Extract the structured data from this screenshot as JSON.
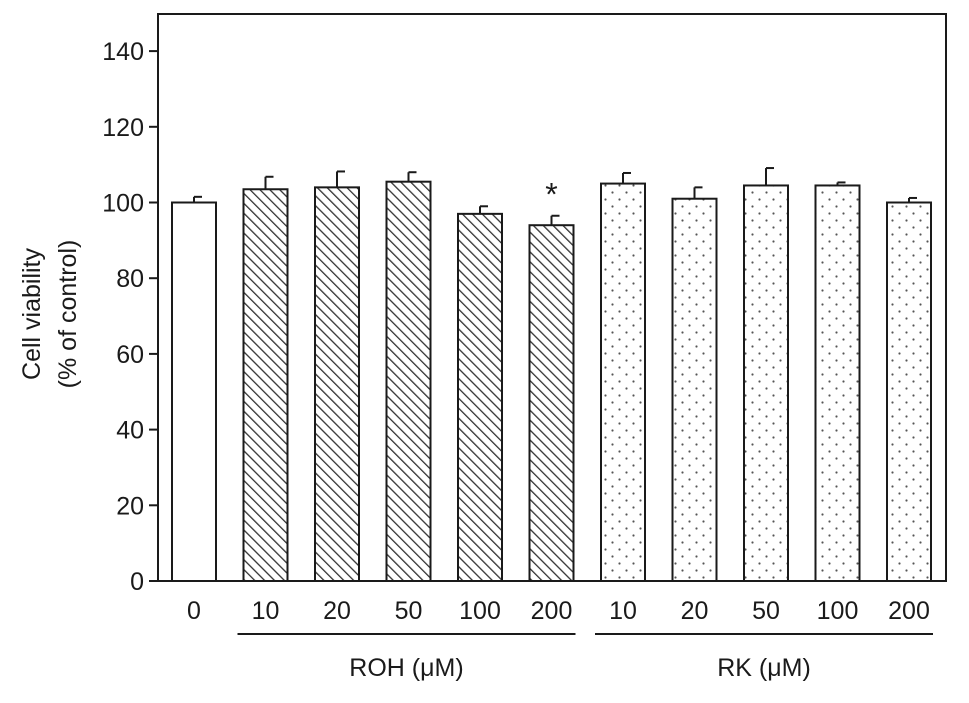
{
  "chart_data": {
    "type": "bar",
    "title": "",
    "ylabel_lines": [
      "Cell viability",
      "(% of control)"
    ],
    "xlabel": "",
    "ylim": [
      0,
      150
    ],
    "yticks": [
      0,
      20,
      40,
      60,
      80,
      100,
      120,
      140
    ],
    "grid": false,
    "categories": [
      "0",
      "10",
      "20",
      "50",
      "100",
      "200",
      "10",
      "20",
      "50",
      "100",
      "200"
    ],
    "values": [
      100,
      103.5,
      104,
      105.5,
      97,
      94,
      105,
      101,
      104.5,
      104.5,
      100
    ],
    "errors": [
      1.5,
      3.3,
      4.2,
      2.5,
      2.0,
      2.5,
      2.8,
      3.0,
      4.6,
      0.8,
      1.2
    ],
    "fills": [
      "open",
      "hatched",
      "hatched",
      "hatched",
      "hatched",
      "hatched",
      "dotted",
      "dotted",
      "dotted",
      "dotted",
      "dotted"
    ],
    "significance": [
      "",
      "",
      "",
      "",
      "",
      "*",
      "",
      "",
      "",
      "",
      ""
    ],
    "groups": [
      {
        "label": "ROH (μM)",
        "start": 1,
        "end": 5
      },
      {
        "label": "RK (μM)",
        "start": 6,
        "end": 10
      }
    ],
    "colors": {
      "axis": "#1a1a1a",
      "bar_fill": "#ffffff",
      "hatch": "#333333",
      "dot": "#555555"
    }
  }
}
